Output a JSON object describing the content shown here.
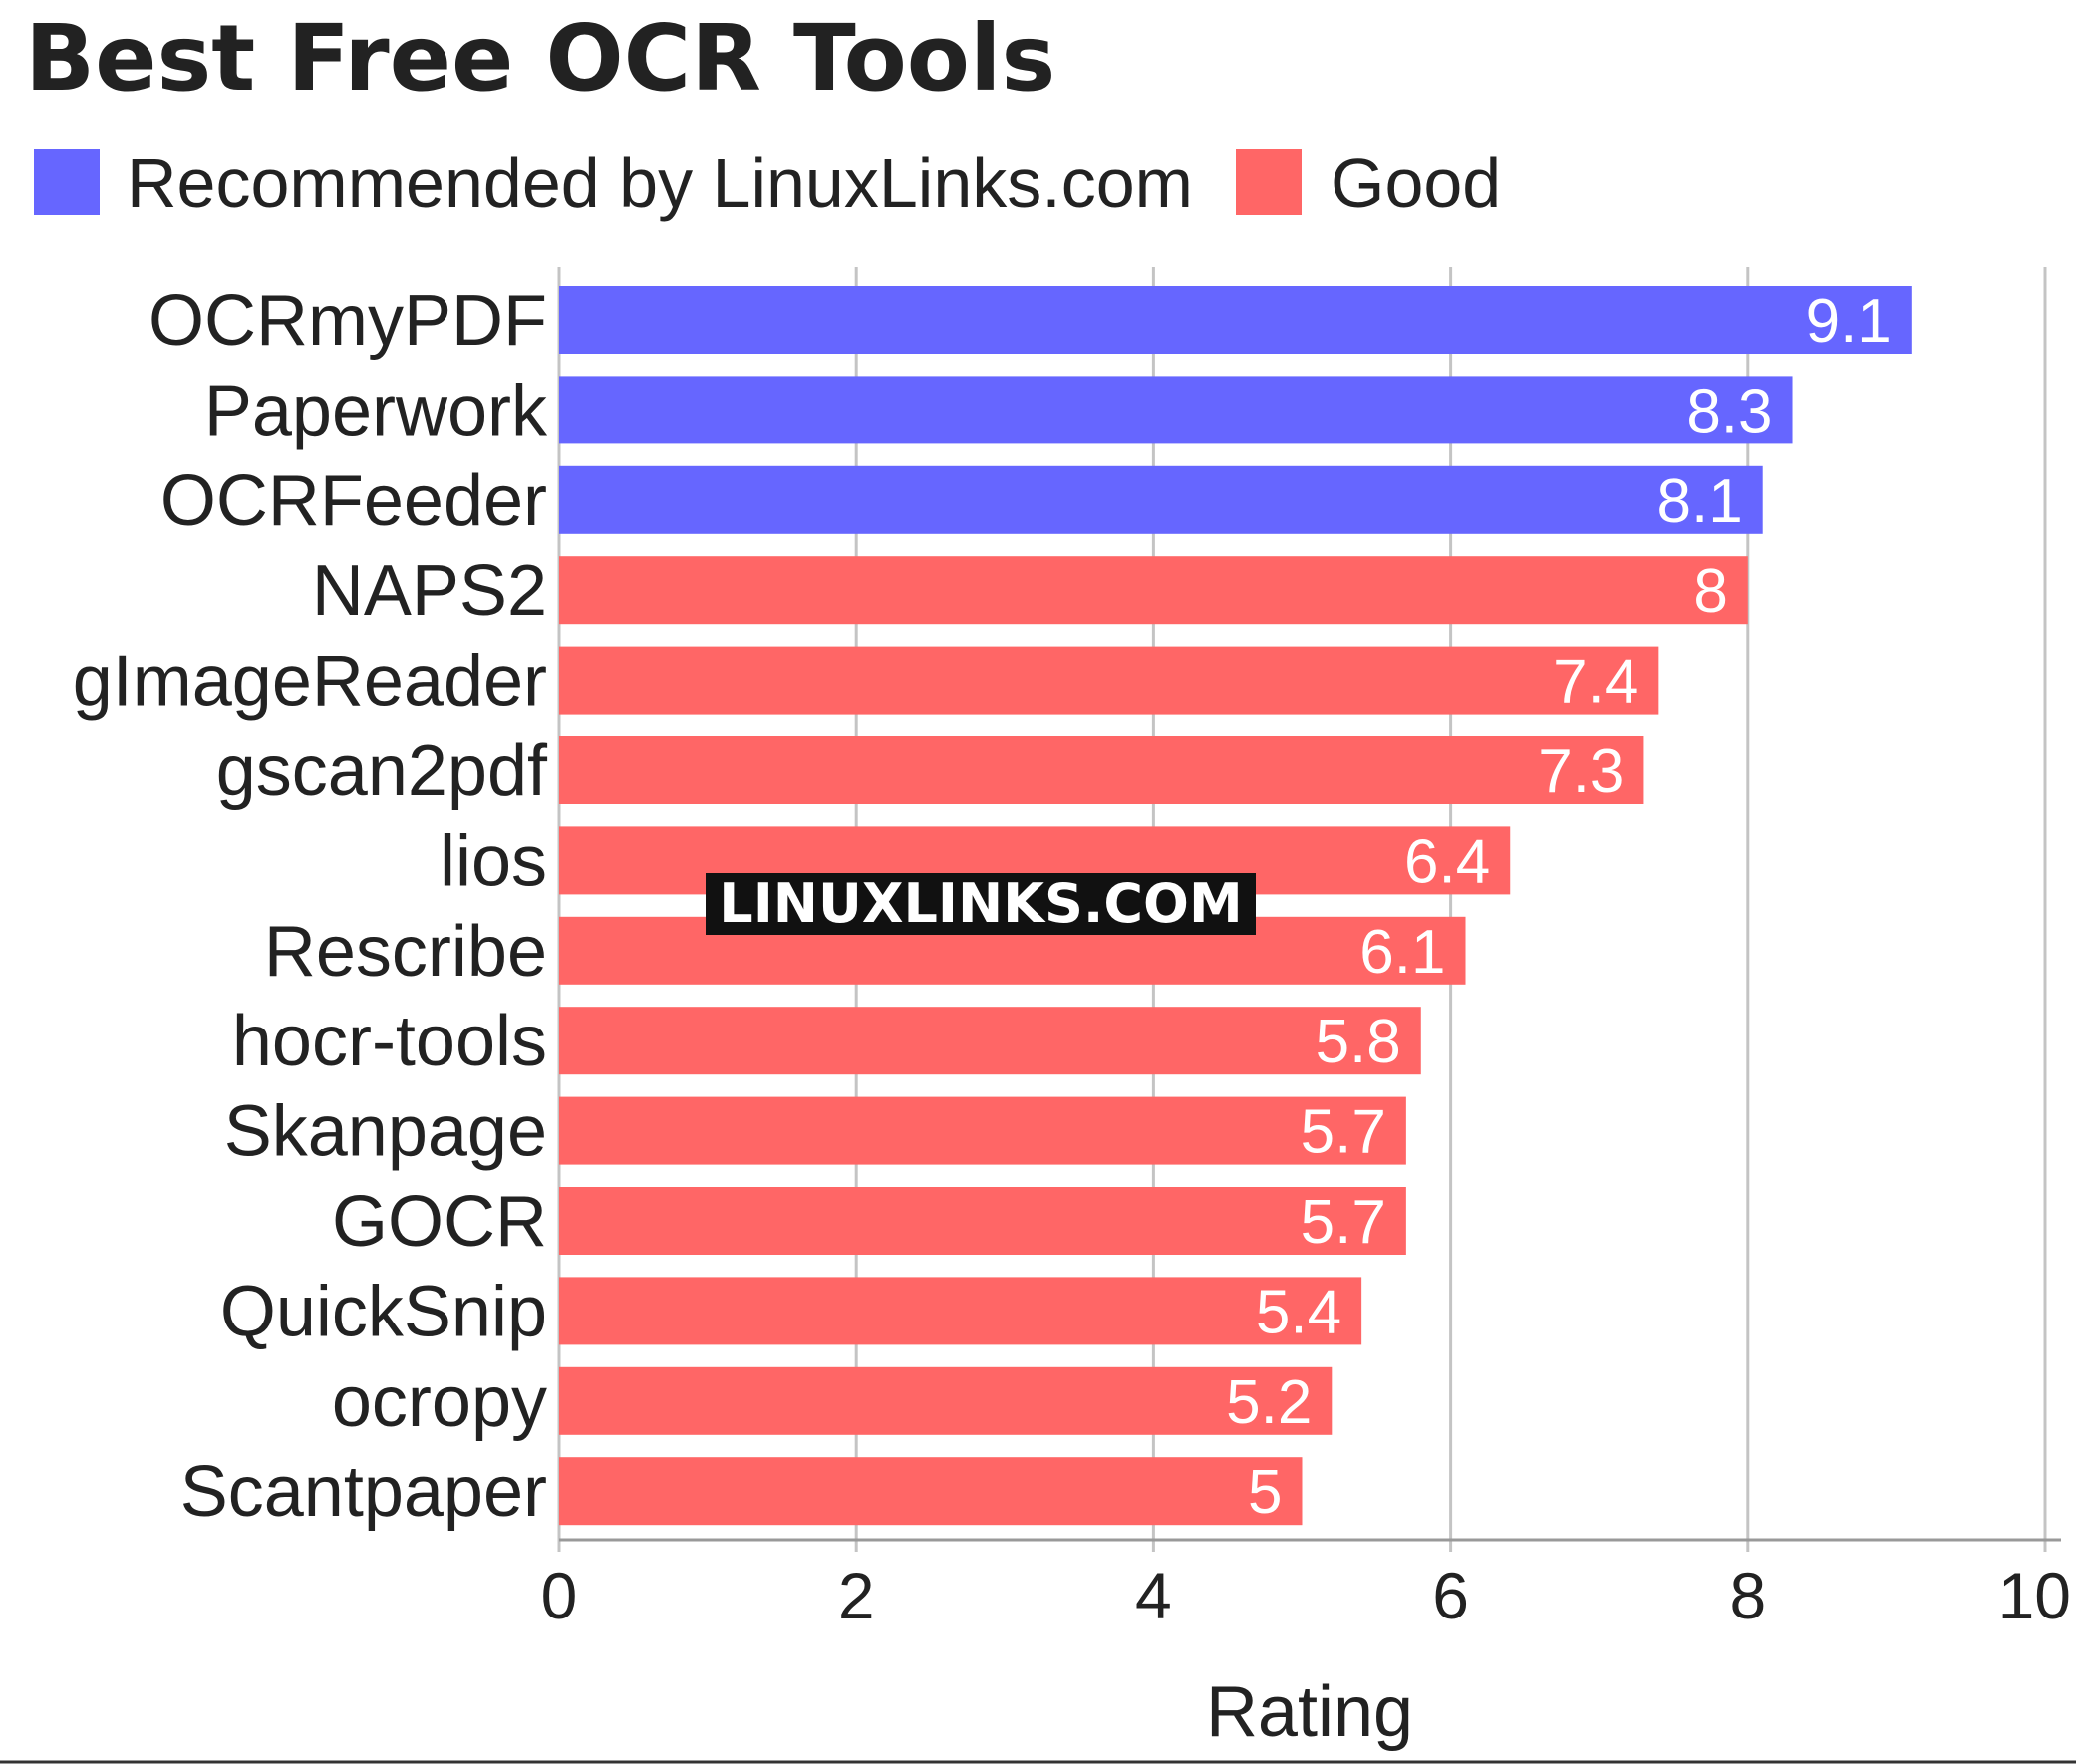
{
  "chart_data": {
    "type": "bar",
    "orientation": "horizontal",
    "title": "Best Free OCR Tools",
    "xlabel": "Rating",
    "ylabel": "",
    "xlim": [
      0,
      10
    ],
    "ticks": [
      "0",
      "2",
      "4",
      "6",
      "8",
      "10"
    ],
    "grid": true,
    "legend_position": "top-left",
    "legend": [
      {
        "name": "Recommended by LinuxLinks.com",
        "color": "#6666ff"
      },
      {
        "name": "Good",
        "color": "#ff6666"
      }
    ],
    "categories": [
      "OCRmyPDF",
      "Paperwork",
      "OCRFeeder",
      "NAPS2",
      "gImageReader",
      "gscan2pdf",
      "lios",
      "Rescribe",
      "hocr-tools",
      "Skanpage",
      "GOCR",
      "QuickSnip",
      "ocropy",
      "Scantpaper"
    ],
    "values": [
      9.1,
      8.3,
      8.1,
      8,
      7.4,
      7.3,
      6.4,
      6.1,
      5.8,
      5.7,
      5.7,
      5.4,
      5.2,
      5
    ],
    "groups": [
      0,
      0,
      0,
      1,
      1,
      1,
      1,
      1,
      1,
      1,
      1,
      1,
      1,
      1
    ],
    "value_labels": [
      "9.1",
      "8.3",
      "8.1",
      "8",
      "7.4",
      "7.3",
      "6.4",
      "6.1",
      "5.8",
      "5.7",
      "5.7",
      "5.4",
      "5.2",
      "5"
    ]
  },
  "watermark": "LINUXLINKS.COM"
}
